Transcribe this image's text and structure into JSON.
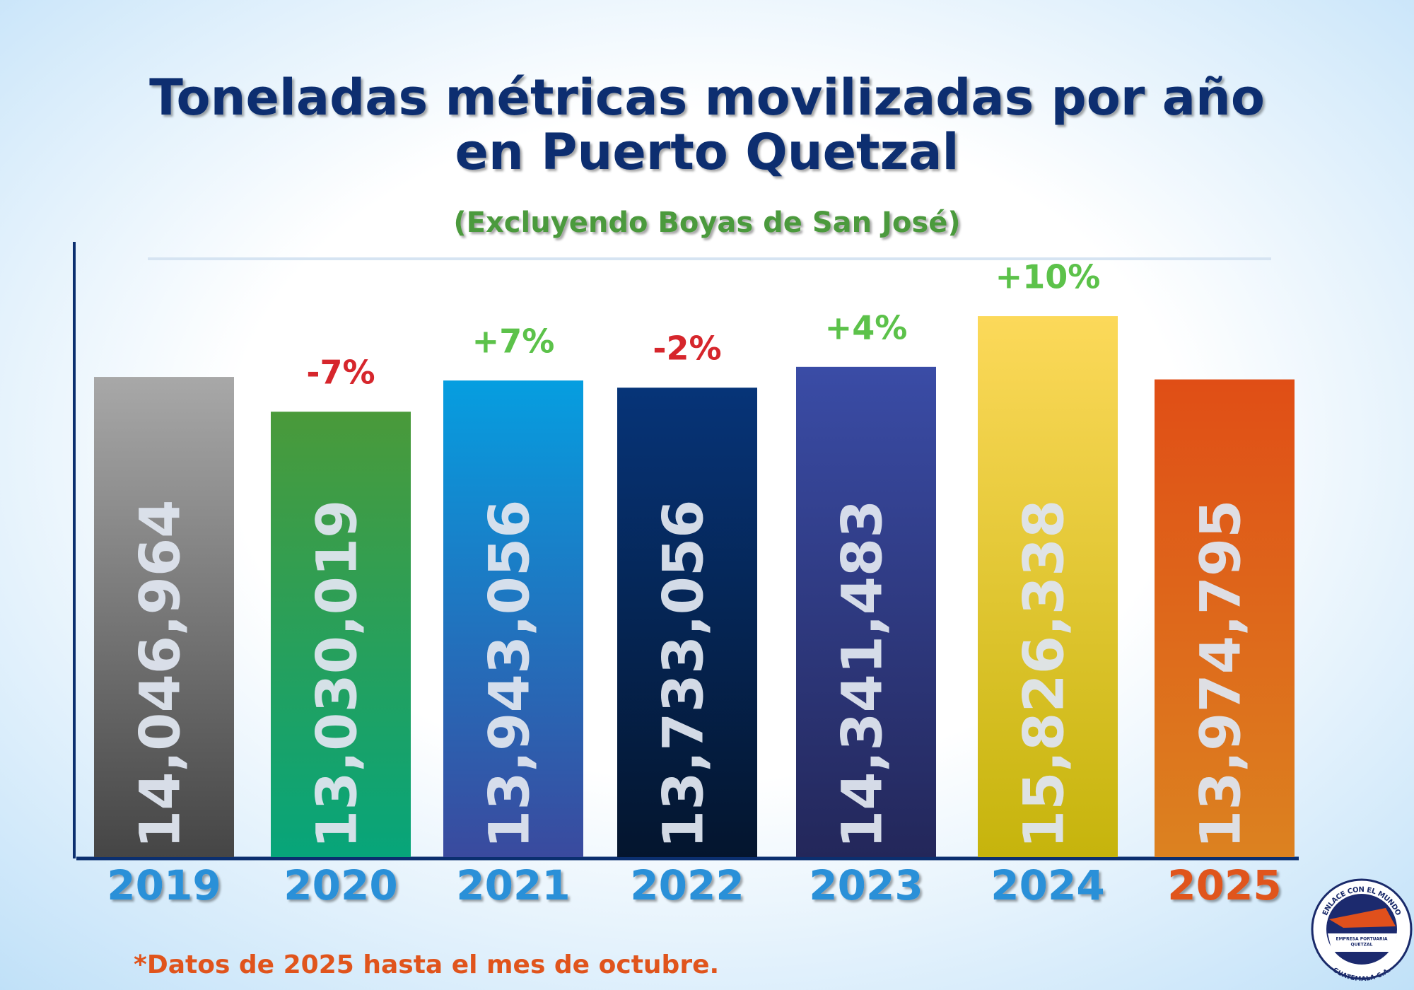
{
  "chart_data": {
    "type": "bar",
    "title": [
      "Toneladas métricas movilizadas por año",
      "en Puerto Quetzal"
    ],
    "subtitle": "(Excluyendo Boyas de San José)",
    "categories": [
      "2019",
      "2020",
      "2021",
      "2022",
      "2023",
      "2024",
      "2025"
    ],
    "category_colors": [
      "#2a90d8",
      "#2a90d8",
      "#2a90d8",
      "#2a90d8",
      "#2a90d8",
      "#2a90d8",
      "#e0541c"
    ],
    "values": [
      14046964,
      13030019,
      13943056,
      13733056,
      14341483,
      15826338,
      13974795
    ],
    "value_labels": [
      "14,046,964",
      "13,030,019",
      "13,943,056",
      "13,733,056",
      "14,341,483",
      "15,826,338",
      "13,974,795"
    ],
    "colors": [
      [
        "#a8a8a8",
        "#454545"
      ],
      [
        "#4a9a3a",
        "#07a57a"
      ],
      [
        "#069ee0",
        "#3a4a9e"
      ],
      [
        "#063478",
        "#04152e"
      ],
      [
        "#3a4ca6",
        "#23275a"
      ],
      [
        "#fcd95a",
        "#c6b40c"
      ],
      [
        "#e04e16",
        "#dc8220"
      ]
    ],
    "change_labels": [
      null,
      "-7%",
      "+7%",
      "-2%",
      "+4%",
      "+10%",
      null
    ],
    "change_colors": [
      null,
      "#d6262c",
      "#5cc24a",
      "#d6262c",
      "#5cc24a",
      "#5cc24a",
      null
    ],
    "ylim": [
      0,
      18000000
    ],
    "footnote": "*Datos de 2025 hasta el mes de octubre."
  },
  "logo": {
    "top": "ENLACE CON EL MUNDO",
    "center": [
      "EMPRESA PORTUARIA",
      "QUETZAL"
    ],
    "bottom": "GUATEMALA C.A."
  }
}
